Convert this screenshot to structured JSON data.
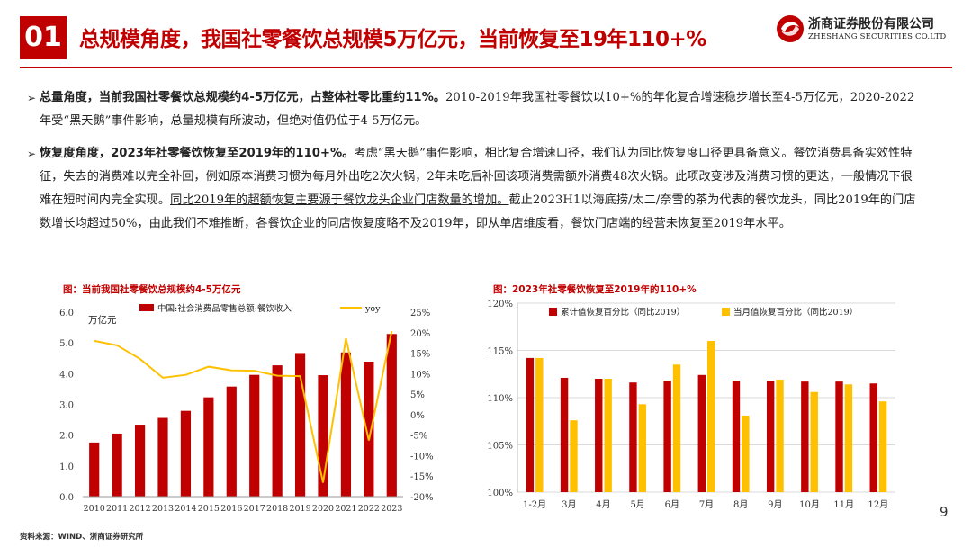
{
  "header": {
    "section_number": "01",
    "title": "总规模角度，我国社零餐饮总规模5万亿元，当前恢复至19年110+%",
    "logo_cn": "浙商证券股份有限公司",
    "logo_en": "ZHESHANG SECURITIES CO.LTD"
  },
  "paragraphs": [
    {
      "bullet": "➢",
      "bold": "总量角度，当前我国社零餐饮总规模约4-5万亿元，占整体社零比重约11%。",
      "text": "2010-2019年我国社零餐饮以10+%的年化复合增速稳步增长至4-5万亿元，2020-2022年受“黑天鹅”事件影响，总量规模有所波动，但绝对值仍位于4-5万亿元。"
    },
    {
      "bullet": "➢",
      "bold": "恢复度角度，2023年社零餐饮恢复至2019年的110+%。",
      "text": "考虑“黑天鹅”事件影响，相比复合增速口径，我们认为同比恢复度口径更具备意义。餐饮消费具备实效性特征，失去的消费难以完全补回，例如原本消费习惯为每月外出吃2次火锅，2年未吃后补回该项消费需额外消费48次火锅。此项改变涉及消费习惯的更迭，一般情况下很难在短时间内完全实现。",
      "underline": "同比2019年的超额恢复主要源于餐饮龙头企业门店数量的增加。",
      "text2": "截止2023H1以海底捞/太二/奈雪的茶为代表的餐饮龙头，同比2019年的门店数增长均超过50%，由此我们不难推断，各餐饮企业的同店恢复度略不及2019年，即从单店维度看，餐饮门店端的经营未恢复至2019年水平。"
    }
  ],
  "chart_data": [
    {
      "type": "bar",
      "title": "图：当前我国社零餐饮总规模约4-5万亿元",
      "unit_label": "万亿元",
      "categories": [
        "2010",
        "2011",
        "2012",
        "2013",
        "2014",
        "2015",
        "2016",
        "2017",
        "2018",
        "2019",
        "2020",
        "2021",
        "2022",
        "2023"
      ],
      "series": [
        {
          "name": "中国:社会消费品零售总额:餐饮收入",
          "kind": "bar",
          "axis": "left",
          "color": "#c00000",
          "values": [
            1.76,
            2.05,
            2.34,
            2.56,
            2.79,
            3.23,
            3.58,
            3.96,
            4.27,
            4.67,
            3.95,
            4.69,
            4.39,
            5.29
          ]
        },
        {
          "name": "yoy",
          "kind": "line",
          "axis": "right",
          "color": "#ffc000",
          "values": [
            18.0,
            16.9,
            13.6,
            9.0,
            9.7,
            11.7,
            10.8,
            10.7,
            9.5,
            9.4,
            -16.6,
            18.6,
            -6.3,
            20.4
          ]
        }
      ],
      "ylim_left": [
        0,
        6
      ],
      "yticks_left": [
        "0.0",
        "1.0",
        "2.0",
        "3.0",
        "4.0",
        "5.0",
        "6.0"
      ],
      "ylim_right": [
        -20,
        25
      ],
      "yticks_right": [
        "-20%",
        "-15%",
        "-10%",
        "-5%",
        "0%",
        "5%",
        "10%",
        "15%",
        "20%",
        "25%"
      ]
    },
    {
      "type": "bar",
      "title": "图：2023年社零餐饮恢复至2019年的110+%",
      "categories": [
        "1-2月",
        "3月",
        "4月",
        "5月",
        "6月",
        "7月",
        "8月",
        "9月",
        "10月",
        "11月",
        "12月"
      ],
      "series": [
        {
          "name": "累计值恢复百分比（同比2019）",
          "color": "#c00000",
          "values": [
            114.2,
            112.1,
            112.0,
            111.6,
            111.8,
            112.4,
            111.8,
            111.8,
            111.7,
            111.7,
            111.5
          ]
        },
        {
          "name": "当月值恢复百分比（同比2019）",
          "color": "#ffc000",
          "values": [
            114.2,
            107.6,
            112.0,
            109.3,
            113.5,
            116.0,
            108.1,
            111.9,
            110.6,
            111.4,
            109.6
          ]
        }
      ],
      "ylim": [
        100,
        120
      ],
      "yticks": [
        "100%",
        "105%",
        "110%",
        "115%",
        "120%"
      ]
    }
  ],
  "footer": {
    "source": "资料来源：WIND、浙商证券研究所",
    "page_number": "9"
  }
}
